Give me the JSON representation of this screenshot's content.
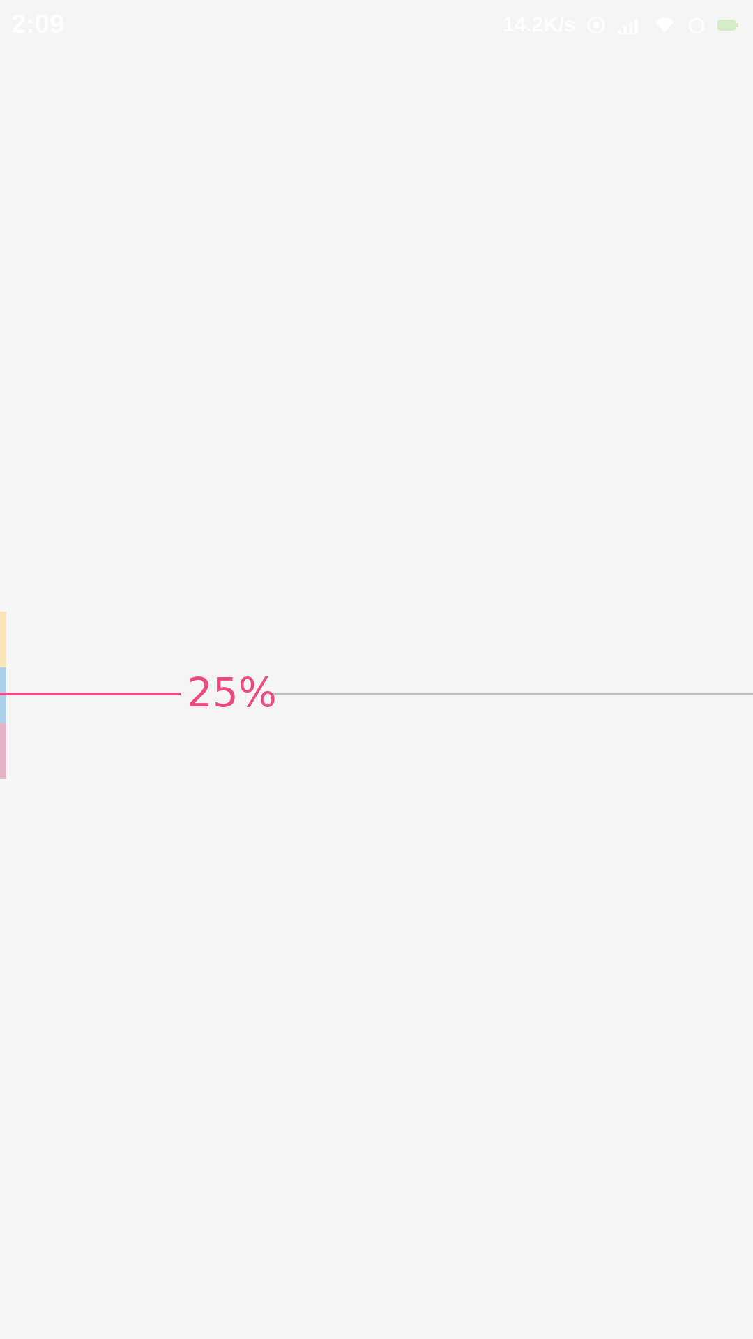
{
  "status_bar": {
    "time": "2:09",
    "network_speed": "14.2K/s",
    "icons": [
      "data-saver-icon",
      "signal-icon",
      "wifi-icon",
      "alarm-icon",
      "battery-icon"
    ]
  },
  "progress": {
    "value_fraction": 0.25,
    "label": "25%",
    "colors": {
      "active": "#ec4a80",
      "track": "#bdbdbd",
      "strip_top": "#f8e4b6",
      "strip_middle": "#aad1e9",
      "strip_bottom": "#e8b3c7"
    }
  }
}
